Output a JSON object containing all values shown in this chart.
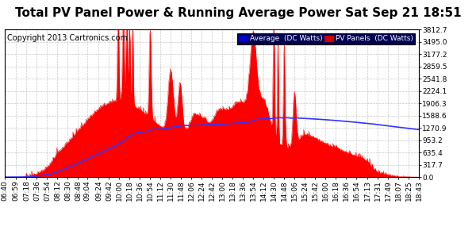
{
  "title": "Total PV Panel Power & Running Average Power Sat Sep 21 18:51",
  "copyright": "Copyright 2013 Cartronics.com",
  "ylabel_values": [
    0.0,
    317.7,
    635.4,
    953.2,
    1270.9,
    1588.6,
    1906.3,
    2224.1,
    2541.8,
    2859.5,
    3177.2,
    3495.0,
    3812.7
  ],
  "ylim": [
    0.0,
    3812.7
  ],
  "x_labels": [
    "06:40",
    "06:59",
    "07:18",
    "07:36",
    "07:54",
    "08:12",
    "08:30",
    "08:48",
    "09:04",
    "09:24",
    "09:42",
    "10:00",
    "10:18",
    "10:36",
    "10:54",
    "11:12",
    "11:30",
    "11:48",
    "12:06",
    "12:24",
    "12:42",
    "13:00",
    "13:18",
    "13:36",
    "13:54",
    "14:12",
    "14:30",
    "14:48",
    "15:06",
    "15:24",
    "15:42",
    "16:00",
    "16:18",
    "16:54",
    "17:13",
    "17:31",
    "17:49",
    "18:07",
    "18:25",
    "18:43"
  ],
  "pv_color": "#ff0000",
  "avg_color": "#3333ff",
  "bg_color": "#ffffff",
  "grid_color": "#bbbbbb",
  "title_fontsize": 11,
  "tick_fontsize": 6.5,
  "copyright_fontsize": 7
}
